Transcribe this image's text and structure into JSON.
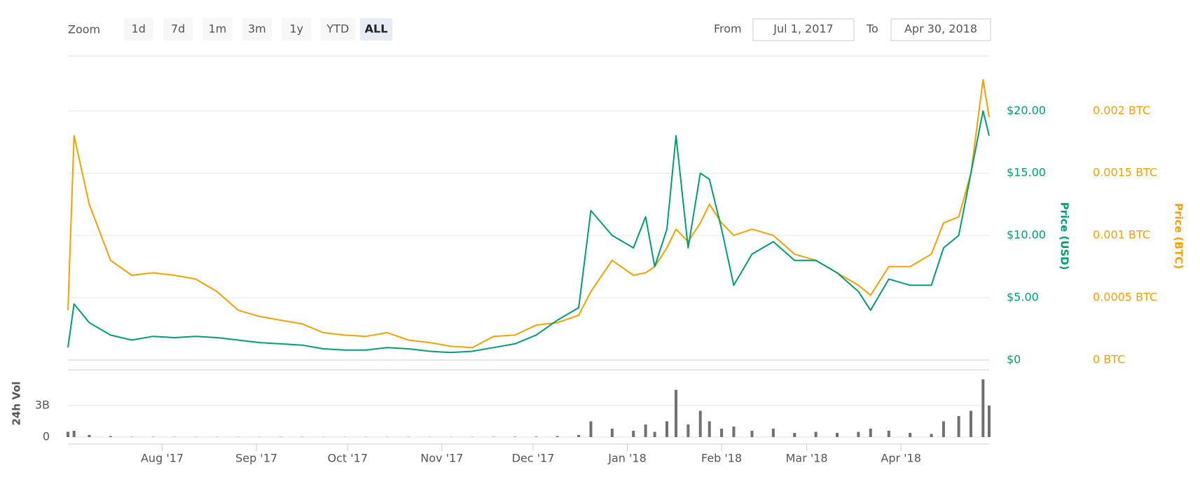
{
  "controls": {
    "zoom_label": "Zoom",
    "zoom_buttons": [
      "1d",
      "7d",
      "1m",
      "3m",
      "1y",
      "YTD",
      "ALL"
    ],
    "active": "ALL",
    "from_label": "From",
    "from_value": "Jul 1, 2017",
    "to_label": "To",
    "to_value": "Apr 30, 2018"
  },
  "chart_data": [
    {
      "type": "line",
      "ylabel": "Price (USD)",
      "y2label": "Price (BTC)",
      "xlim": [
        "2017-07-01",
        "2018-04-30"
      ],
      "x": [
        "2017-07-01",
        "2017-07-03",
        "2017-07-08",
        "2017-07-15",
        "2017-07-22",
        "2017-07-29",
        "2017-08-05",
        "2017-08-12",
        "2017-08-19",
        "2017-08-26",
        "2017-09-02",
        "2017-09-09",
        "2017-09-16",
        "2017-09-23",
        "2017-09-30",
        "2017-10-07",
        "2017-10-14",
        "2017-10-21",
        "2017-10-28",
        "2017-11-04",
        "2017-11-11",
        "2017-11-18",
        "2017-11-25",
        "2017-12-02",
        "2017-12-09",
        "2017-12-16",
        "2017-12-20",
        "2017-12-27",
        "2018-01-03",
        "2018-01-07",
        "2018-01-10",
        "2018-01-14",
        "2018-01-17",
        "2018-01-21",
        "2018-01-25",
        "2018-01-28",
        "2018-02-01",
        "2018-02-05",
        "2018-02-11",
        "2018-02-18",
        "2018-02-25",
        "2018-03-04",
        "2018-03-11",
        "2018-03-18",
        "2018-03-22",
        "2018-03-28",
        "2018-04-04",
        "2018-04-11",
        "2018-04-15",
        "2018-04-20",
        "2018-04-24",
        "2018-04-28",
        "2018-04-30"
      ],
      "ylim": [
        0,
        24.4
      ],
      "yticks": [
        {
          "value": 0,
          "label": "$0"
        },
        {
          "value": 5,
          "label": "$5.00"
        },
        {
          "value": 10,
          "label": "$10.00"
        },
        {
          "value": 15,
          "label": "$15.00"
        },
        {
          "value": 20,
          "label": "$20.00"
        }
      ],
      "y2lim": [
        0,
        0.00244
      ],
      "y2ticks": [
        {
          "value": 0,
          "label": "0 BTC"
        },
        {
          "value": 0.0005,
          "label": "0.0005 BTC"
        },
        {
          "value": 0.001,
          "label": "0.001 BTC"
        },
        {
          "value": 0.0015,
          "label": "0.0015 BTC"
        },
        {
          "value": 0.002,
          "label": "0.002 BTC"
        }
      ],
      "grid": true,
      "series": [
        {
          "name": "Price (USD)",
          "color": "#009e73",
          "axis": "y",
          "values": [
            1.0,
            4.5,
            3.0,
            2.0,
            1.6,
            1.9,
            1.8,
            1.9,
            1.8,
            1.6,
            1.4,
            1.3,
            1.2,
            0.9,
            0.8,
            0.8,
            1.0,
            0.9,
            0.7,
            0.6,
            0.7,
            1.0,
            1.3,
            2.0,
            3.2,
            4.2,
            12.0,
            10.0,
            9.0,
            11.5,
            7.5,
            10.5,
            18.0,
            9.0,
            15.0,
            14.5,
            10.5,
            6.0,
            8.5,
            9.5,
            8.0,
            8.0,
            7.0,
            5.5,
            4.0,
            6.5,
            6.0,
            6.0,
            9.0,
            10.0,
            15.0,
            20.0,
            18.0
          ]
        },
        {
          "name": "Price (BTC)",
          "color": "#f7a000",
          "axis": "y2",
          "values": [
            0.0004,
            0.0018,
            0.00125,
            0.0008,
            0.00068,
            0.0007,
            0.00068,
            0.00065,
            0.00055,
            0.0004,
            0.00035,
            0.00032,
            0.00029,
            0.00022,
            0.0002,
            0.00019,
            0.00022,
            0.00016,
            0.00014,
            0.00011,
            0.0001,
            0.00019,
            0.0002,
            0.00028,
            0.0003,
            0.00036,
            0.00055,
            0.0008,
            0.00068,
            0.0007,
            0.00075,
            0.0009,
            0.00105,
            0.00095,
            0.0011,
            0.00125,
            0.0011,
            0.001,
            0.00105,
            0.001,
            0.00085,
            0.0008,
            0.0007,
            0.0006,
            0.00052,
            0.00075,
            0.00075,
            0.00085,
            0.0011,
            0.00115,
            0.0015,
            0.00225,
            0.00195
          ]
        }
      ]
    },
    {
      "type": "bar",
      "ylabel": "24h Vol",
      "xlim": [
        "2017-07-01",
        "2018-04-30"
      ],
      "xticks": [
        {
          "value": "2017-08-01",
          "label": "Aug '17"
        },
        {
          "value": "2017-09-01",
          "label": "Sep '17"
        },
        {
          "value": "2017-10-01",
          "label": "Oct '17"
        },
        {
          "value": "2017-11-01",
          "label": "Nov '17"
        },
        {
          "value": "2017-12-01",
          "label": "Dec '17"
        },
        {
          "value": "2018-01-01",
          "label": "Jan '18"
        },
        {
          "value": "2018-02-01",
          "label": "Feb '18"
        },
        {
          "value": "2018-03-01",
          "label": "Mar '18"
        },
        {
          "value": "2018-04-01",
          "label": "Apr '18"
        }
      ],
      "x": [
        "2017-07-01",
        "2017-07-03",
        "2017-07-08",
        "2017-07-15",
        "2017-07-22",
        "2017-07-29",
        "2017-08-05",
        "2017-08-12",
        "2017-08-19",
        "2017-08-26",
        "2017-09-02",
        "2017-09-09",
        "2017-09-16",
        "2017-09-23",
        "2017-09-30",
        "2017-10-07",
        "2017-10-14",
        "2017-10-21",
        "2017-10-28",
        "2017-11-04",
        "2017-11-11",
        "2017-11-18",
        "2017-11-25",
        "2017-12-02",
        "2017-12-09",
        "2017-12-16",
        "2017-12-20",
        "2017-12-27",
        "2018-01-03",
        "2018-01-07",
        "2018-01-10",
        "2018-01-14",
        "2018-01-17",
        "2018-01-21",
        "2018-01-25",
        "2018-01-28",
        "2018-02-01",
        "2018-02-05",
        "2018-02-11",
        "2018-02-18",
        "2018-02-25",
        "2018-03-04",
        "2018-03-11",
        "2018-03-18",
        "2018-03-22",
        "2018-03-28",
        "2018-04-04",
        "2018-04-11",
        "2018-04-15",
        "2018-04-20",
        "2018-04-24",
        "2018-04-28",
        "2018-04-30"
      ],
      "ylim": [
        0,
        6400000000
      ],
      "yticks": [
        0,
        {
          "value": 3000000000,
          "label": "3B"
        }
      ],
      "grid": true,
      "color": "#707070",
      "values": [
        500000000,
        600000000,
        200000000,
        100000000,
        30000000,
        30000000,
        20000000,
        20000000,
        20000000,
        20000000,
        20000000,
        20000000,
        20000000,
        20000000,
        20000000,
        20000000,
        20000000,
        20000000,
        20000000,
        20000000,
        20000000,
        30000000,
        40000000,
        50000000,
        100000000,
        200000000,
        1500000000,
        800000000,
        600000000,
        1200000000,
        500000000,
        1500000000,
        4500000000,
        1200000000,
        2500000000,
        1500000000,
        800000000,
        1000000000,
        600000000,
        800000000,
        400000000,
        500000000,
        400000000,
        500000000,
        800000000,
        600000000,
        400000000,
        300000000,
        1500000000,
        2000000000,
        2500000000,
        5500000000,
        3000000000
      ]
    }
  ]
}
